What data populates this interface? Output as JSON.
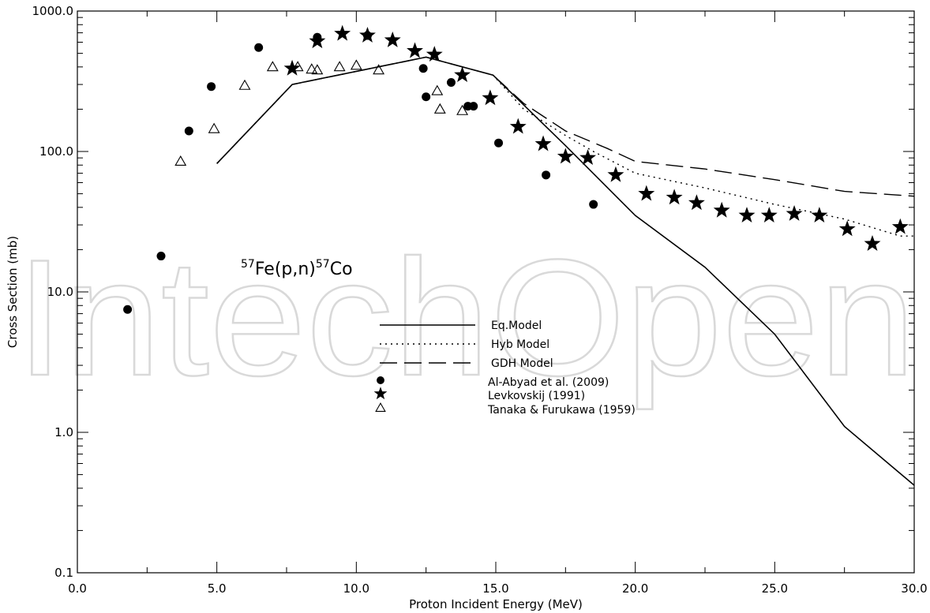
{
  "watermark_text": "IntechOpen",
  "chart_data": {
    "type": "scatter",
    "xlabel": "Proton Incident Energy (MeV)",
    "ylabel": "Cross Section (mb)",
    "xlim": [
      0,
      30
    ],
    "ylim": [
      0.1,
      1000
    ],
    "yscale": "log",
    "grid": false,
    "legend_position": "center",
    "x_ticks": [
      "0.0",
      "5.0",
      "10.0",
      "15.0",
      "20.0",
      "25.0",
      "30.0"
    ],
    "y_ticks": [
      "0.1",
      "1.0",
      "10.0",
      "100.0",
      "1000.0"
    ],
    "annotation": {
      "base1": "Fe(p,n)",
      "sup1": "57",
      "sup2": "57",
      "base2": "Co"
    },
    "series": [
      {
        "name": "Eq.Model",
        "kind": "line",
        "dash": "solid",
        "x": [
          5.0,
          7.7,
          12.5,
          14.9,
          17.5,
          20.0,
          22.5,
          25.0,
          27.5,
          30.0
        ],
        "y": [
          82,
          300,
          470,
          350,
          110,
          35,
          15,
          5.0,
          1.1,
          0.42
        ]
      },
      {
        "name": "Hyb Model",
        "kind": "line",
        "dash": "dotted",
        "x": [
          5.0,
          7.7,
          12.5,
          14.9,
          16.0,
          17.5,
          18.5,
          20.0,
          22.5,
          25.0,
          27.5,
          29.5,
          30.0
        ],
        "y": [
          82,
          300,
          470,
          350,
          200,
          130,
          100,
          70,
          55,
          42,
          33,
          25,
          25
        ]
      },
      {
        "name": "GDH Model",
        "kind": "line",
        "dash": "dashed",
        "x": [
          5.0,
          7.7,
          12.5,
          14.9,
          16.0,
          17.5,
          19.0,
          20.0,
          22.5,
          25.0,
          27.5,
          30.0
        ],
        "y": [
          82,
          300,
          470,
          350,
          220,
          140,
          105,
          85,
          75,
          63,
          52,
          48
        ]
      },
      {
        "name": "Al-Abyad et al. (2009)",
        "kind": "marker",
        "marker": "circle",
        "x": [
          1.8,
          3.0,
          4.0,
          4.8,
          6.5,
          8.6,
          10.4,
          12.4,
          12.5,
          13.4,
          14.0,
          14.2,
          15.1,
          16.8,
          18.5
        ],
        "y": [
          7.5,
          18,
          140,
          290,
          550,
          650,
          670,
          390,
          245,
          310,
          210,
          210,
          115,
          68,
          42
        ]
      },
      {
        "name": "Levkovskij (1991)",
        "kind": "marker",
        "marker": "star",
        "x": [
          7.7,
          8.6,
          9.5,
          10.4,
          11.3,
          12.1,
          12.8,
          13.8,
          14.8,
          15.8,
          16.7,
          17.5,
          18.3,
          19.3,
          20.4,
          21.4,
          22.2,
          23.1,
          24.0,
          24.8,
          25.7,
          26.6,
          27.6,
          28.5,
          29.5
        ],
        "y": [
          390,
          610,
          690,
          670,
          620,
          520,
          490,
          350,
          240,
          150,
          113,
          92,
          90,
          68,
          50,
          47,
          43,
          38,
          35,
          35,
          36,
          35,
          28,
          22,
          29
        ]
      },
      {
        "name": "Tanaka & Furukawa  (1959)",
        "kind": "marker",
        "marker": "triangle",
        "x": [
          3.7,
          4.9,
          6.0,
          7.0,
          7.9,
          8.4,
          8.6,
          9.4,
          10.0,
          10.8,
          12.9,
          13.0,
          13.8
        ],
        "y": [
          85,
          145,
          295,
          400,
          400,
          385,
          380,
          400,
          410,
          380,
          270,
          200,
          195
        ]
      }
    ]
  }
}
